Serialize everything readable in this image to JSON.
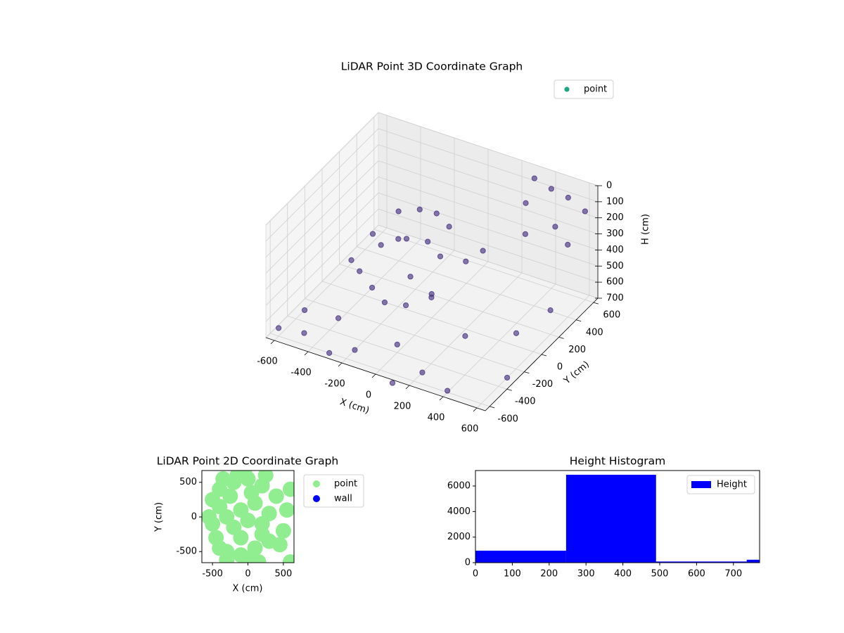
{
  "chart_data": [
    {
      "type": "scatter3d",
      "title": "LiDAR Point 3D Coordinate Graph",
      "xlabel": "X (cm)",
      "ylabel": "Y (cm)",
      "zlabel": "H (cm)",
      "xlim": [
        -650,
        650
      ],
      "ylim": [
        -650,
        650
      ],
      "zlim": [
        0,
        700
      ],
      "z_inverted": true,
      "xticks": [
        -600,
        -400,
        -200,
        0,
        200,
        400,
        600
      ],
      "yticks": [
        -600,
        -400,
        -200,
        0,
        200,
        400,
        600
      ],
      "zticks": [
        0,
        100,
        200,
        300,
        400,
        500,
        600,
        700
      ],
      "legend": "upper right",
      "legend_color": "#21a685",
      "series": [
        {
          "name": "point",
          "color": "#4a3382",
          "x": [
            -300,
            -200,
            -100,
            0,
            -350,
            -250,
            -150,
            -50,
            50,
            -300,
            -200,
            -100,
            0,
            100,
            -400,
            150,
            200,
            -250,
            -50,
            50,
            300,
            400,
            500,
            600,
            300,
            500,
            600,
            400,
            -600,
            -500,
            -400,
            -200,
            0,
            200,
            400,
            300,
            500,
            600,
            -600,
            -300,
            100,
            600
          ],
          "y": [
            200,
            250,
            250,
            200,
            0,
            -100,
            0,
            50,
            0,
            -250,
            -300,
            -350,
            -300,
            -200,
            -150,
            100,
            200,
            100,
            -150,
            -100,
            600,
            600,
            600,
            600,
            500,
            450,
            400,
            300,
            -600,
            -500,
            -300,
            -500,
            -400,
            -500,
            -600,
            -200,
            0,
            200,
            -300,
            -600,
            -650,
            -300
          ],
          "z": [
            250,
            230,
            220,
            240,
            300,
            280,
            260,
            270,
            300,
            380,
            420,
            450,
            460,
            430,
            400,
            350,
            320,
            350,
            380,
            480,
            50,
            80,
            100,
            150,
            150,
            200,
            250,
            200,
            650,
            700,
            680,
            700,
            650,
            700,
            690,
            600,
            620,
            550,
            700,
            700,
            720,
            700
          ]
        }
      ]
    },
    {
      "type": "scatter",
      "title": "LiDAR Point 2D Coordinate Graph",
      "xlabel": "X (cm)",
      "ylabel": "Y (cm)",
      "xlim": [
        -650,
        650
      ],
      "ylim": [
        -660,
        670
      ],
      "xticks": [
        -500,
        0,
        500
      ],
      "yticks": [
        -500,
        0,
        500
      ],
      "legend": "outside right",
      "series": [
        {
          "name": "point",
          "color": "#90ee90",
          "x": [
            -550,
            -500,
            -450,
            -400,
            -300,
            -200,
            -100,
            0,
            100,
            200,
            300,
            400,
            500,
            600,
            -500,
            -400,
            -300,
            -200,
            -100,
            0,
            100,
            200,
            300,
            -400,
            -250,
            -100,
            50,
            200,
            -350,
            -150,
            0,
            150,
            600,
            550,
            -300,
            -50,
            250,
            450
          ],
          "values": [
            0,
            250,
            -300,
            400,
            -500,
            500,
            -550,
            550,
            -450,
            450,
            -350,
            300,
            -200,
            400,
            -100,
            150,
            0,
            -150,
            100,
            -50,
            200,
            -250,
            50,
            -450,
            300,
            -300,
            350,
            -100,
            550,
            600,
            -600,
            -650,
            -650,
            100,
            -620,
            650,
            600,
            -400
          ]
        },
        {
          "name": "wall",
          "color": "#0000ff",
          "x": [],
          "values": []
        }
      ]
    },
    {
      "type": "histogram",
      "title": "Height Histogram",
      "bins": [
        0,
        246,
        490,
        736,
        980
      ],
      "xlim": [
        0,
        771
      ],
      "ylim": [
        0,
        7210
      ],
      "xticks": [
        0,
        100,
        200,
        300,
        400,
        500,
        600,
        700
      ],
      "yticks": [
        0,
        2000,
        4000,
        6000
      ],
      "legend": "upper right",
      "series": [
        {
          "name": "Height",
          "color": "#0000ff",
          "values": [
            940,
            6880,
            90,
            230
          ]
        }
      ]
    }
  ]
}
